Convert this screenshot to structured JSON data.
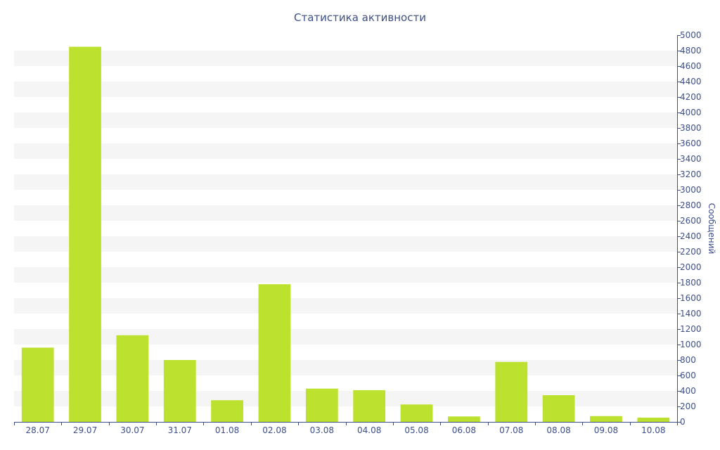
{
  "chart_data": {
    "type": "bar",
    "title": "Статистика активности",
    "xlabel": "",
    "ylabel": "Сообщений",
    "ylim": [
      0,
      5000
    ],
    "y_axis_side": "right",
    "y_tick_step": 200,
    "grid": "alternating horizontal bands",
    "categories": [
      "28.07",
      "29.07",
      "30.07",
      "31.07",
      "01.08",
      "02.08",
      "03.08",
      "04.08",
      "05.08",
      "06.08",
      "07.08",
      "08.08",
      "09.08",
      "10.08"
    ],
    "values": [
      960,
      4850,
      1120,
      800,
      280,
      1780,
      430,
      410,
      225,
      70,
      775,
      345,
      75,
      55
    ]
  },
  "colors": {
    "bar": "#bde12f",
    "band": "#f5f5f5",
    "axis": "#3e4f8a",
    "text": "#3e4f8a"
  }
}
